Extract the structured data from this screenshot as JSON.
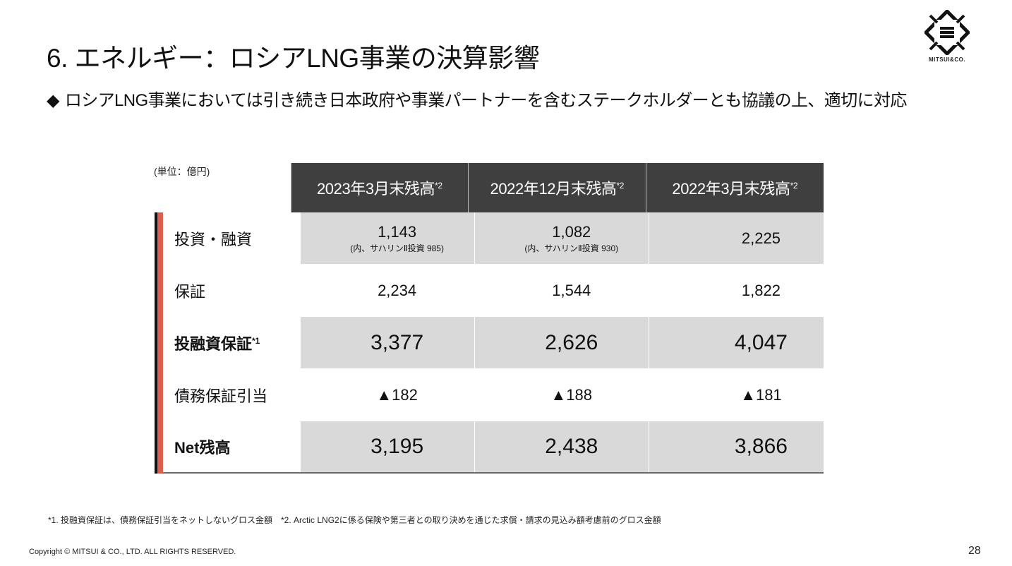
{
  "title": "6. エネルギー：ロシアLNG事業の決算影響",
  "logo": {
    "text": "MITSUI&CO."
  },
  "subtitle": {
    "bullet": "◆",
    "text": "ロシアLNG事業においては引き続き日本政府や事業パートナーを含むステークホルダーとも協議の上、適切に対応"
  },
  "table": {
    "unit": "(単位：億円)",
    "columns": [
      {
        "label": "2023年3月末残高",
        "sup": "*2"
      },
      {
        "label": "2022年12月末残高",
        "sup": "*2"
      },
      {
        "label": "2022年3月末残高",
        "sup": "*2"
      }
    ],
    "rows": [
      {
        "label": "投資・融資",
        "sup": "",
        "values": [
          "1,143",
          "1,082",
          "2,225"
        ],
        "notes": [
          "(内、サハリンⅡ投資 985)",
          "(内、サハリンⅡ投資 930)",
          ""
        ]
      },
      {
        "label": "保証",
        "sup": "",
        "values": [
          "2,234",
          "1,544",
          "1,822"
        ]
      },
      {
        "label": "投融資保証",
        "sup": "*1",
        "values": [
          "3,377",
          "2,626",
          "4,047"
        ]
      },
      {
        "label": "債務保証引当",
        "sup": "",
        "values": [
          "▲182",
          "▲188",
          "▲181"
        ]
      },
      {
        "label": "Net残高",
        "sup": "",
        "values": [
          "3,195",
          "2,438",
          "3,866"
        ]
      }
    ]
  },
  "footnote": "*1. 投融資保証は、債務保証引当をネットしないグロス金額　*2. Arctic LNG2に係る保険や第三者との取り決めを通じた求償・請求の見込み額考慮前のグロス金額",
  "copyright": "Copyright © MITSUI & CO., LTD. ALL RIGHTS RESERVED.",
  "page_number": "28"
}
